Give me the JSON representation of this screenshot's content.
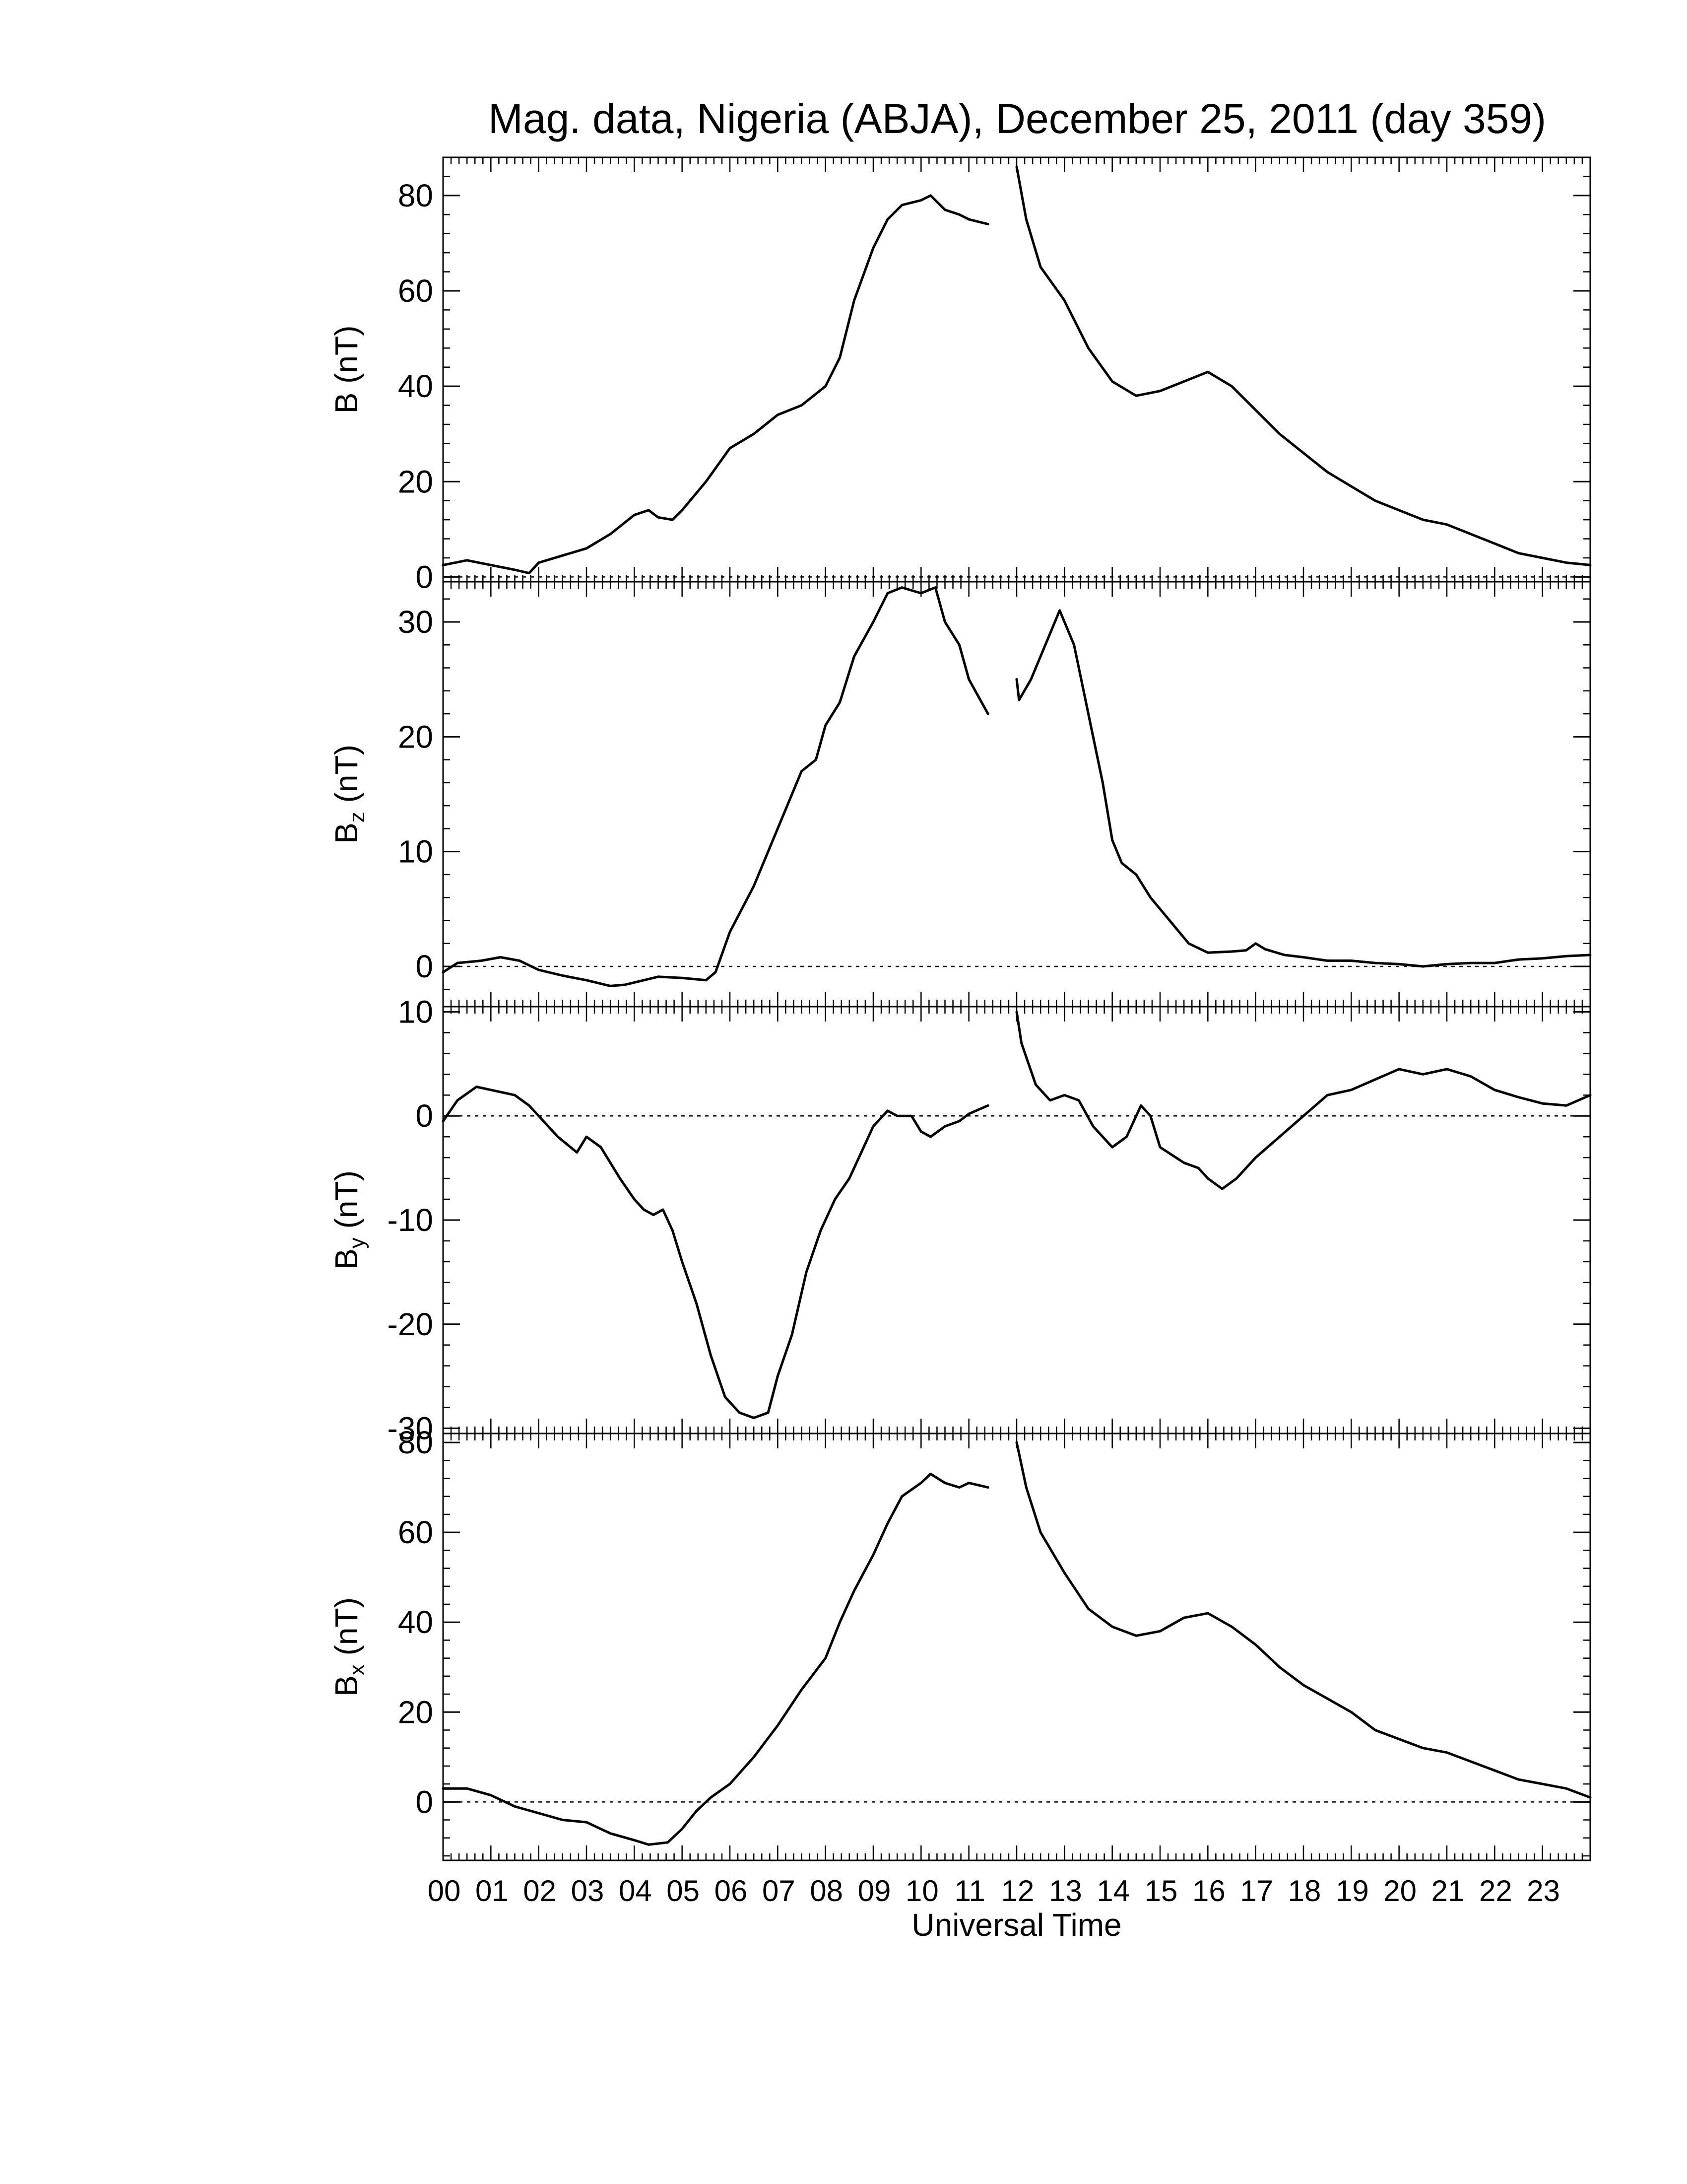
{
  "chart_data": {
    "type": "line",
    "title": "Mag. data, Nigeria (ABJA), December 25, 2011 (day 359)",
    "xlabel": "Universal Time",
    "x_ticks": [
      "00",
      "01",
      "02",
      "03",
      "04",
      "05",
      "06",
      "07",
      "08",
      "09",
      "10",
      "11",
      "12",
      "13",
      "14",
      "15",
      "16",
      "17",
      "18",
      "19",
      "20",
      "21",
      "22",
      "23"
    ],
    "x_range": [
      0,
      24
    ],
    "x_unit": "hours UT",
    "panels": [
      {
        "name": "B",
        "ylabel_main": "B",
        "ylabel_sub": "",
        "ylabel_unit": "(nT)",
        "ylim": [
          -1,
          88
        ],
        "yticks": [
          0,
          20,
          40,
          60,
          80
        ],
        "zero_line": true,
        "series": [
          [
            [
              0,
              2.5
            ],
            [
              0.5,
              3.5
            ],
            [
              1,
              2.5
            ],
            [
              1.5,
              1.5
            ],
            [
              1.8,
              0.8
            ],
            [
              2,
              3
            ],
            [
              2.5,
              4.5
            ],
            [
              3,
              6
            ],
            [
              3.5,
              9
            ],
            [
              4,
              13
            ],
            [
              4.3,
              14
            ],
            [
              4.5,
              12.5
            ],
            [
              4.8,
              12
            ],
            [
              5,
              14
            ],
            [
              5.5,
              20
            ],
            [
              6,
              27
            ],
            [
              6.5,
              30
            ],
            [
              7,
              34
            ],
            [
              7.5,
              36
            ],
            [
              8,
              40
            ],
            [
              8.3,
              46
            ],
            [
              8.6,
              58
            ],
            [
              9,
              69
            ],
            [
              9.3,
              75
            ],
            [
              9.6,
              78
            ],
            [
              10,
              79
            ],
            [
              10.2,
              80
            ],
            [
              10.5,
              77
            ],
            [
              10.8,
              76
            ],
            [
              11,
              75
            ],
            [
              11.4,
              74
            ]
          ],
          [
            [
              12,
              86
            ],
            [
              12.2,
              75
            ],
            [
              12.5,
              65
            ],
            [
              13,
              58
            ],
            [
              13.5,
              48
            ],
            [
              14,
              41
            ],
            [
              14.5,
              38
            ],
            [
              15,
              39
            ],
            [
              15.5,
              41
            ],
            [
              16,
              43
            ],
            [
              16.5,
              40
            ],
            [
              17,
              35
            ],
            [
              17.5,
              30
            ],
            [
              18,
              26
            ],
            [
              18.5,
              22
            ],
            [
              19,
              19
            ],
            [
              19.5,
              16
            ],
            [
              20,
              14
            ],
            [
              20.5,
              12
            ],
            [
              21,
              11
            ],
            [
              21.5,
              9
            ],
            [
              22,
              7
            ],
            [
              22.5,
              5
            ],
            [
              23,
              4
            ],
            [
              23.5,
              3
            ],
            [
              24,
              2.5
            ]
          ]
        ]
      },
      {
        "name": "Bz",
        "ylabel_main": "B",
        "ylabel_sub": "z",
        "ylabel_unit": "(nT)",
        "ylim": [
          -3.5,
          33.5
        ],
        "yticks": [
          0,
          10,
          20,
          30
        ],
        "zero_line": true,
        "series": [
          [
            [
              0,
              -0.5
            ],
            [
              0.3,
              0.3
            ],
            [
              0.8,
              0.5
            ],
            [
              1.2,
              0.8
            ],
            [
              1.6,
              0.5
            ],
            [
              2,
              -0.3
            ],
            [
              2.5,
              -0.8
            ],
            [
              3,
              -1.2
            ],
            [
              3.5,
              -1.7
            ],
            [
              3.8,
              -1.6
            ],
            [
              4,
              -1.4
            ],
            [
              4.5,
              -0.9
            ],
            [
              5,
              -1
            ],
            [
              5.5,
              -1.2
            ],
            [
              5.7,
              -0.5
            ],
            [
              6,
              3
            ],
            [
              6.5,
              7
            ],
            [
              7,
              12
            ],
            [
              7.3,
              15
            ],
            [
              7.5,
              17
            ],
            [
              7.8,
              18
            ],
            [
              8,
              21
            ],
            [
              8.3,
              23
            ],
            [
              8.6,
              27
            ],
            [
              9,
              30
            ],
            [
              9.3,
              32.5
            ],
            [
              9.6,
              33
            ],
            [
              10,
              32.5
            ],
            [
              10.3,
              33
            ],
            [
              10.5,
              30
            ],
            [
              10.8,
              28
            ],
            [
              11,
              25
            ],
            [
              11.4,
              22
            ]
          ],
          [
            [
              12,
              25
            ],
            [
              12.05,
              23.2
            ],
            [
              12.3,
              25
            ],
            [
              12.6,
              28
            ],
            [
              12.9,
              31
            ],
            [
              13.2,
              28
            ],
            [
              13.5,
              22
            ],
            [
              13.8,
              16
            ],
            [
              14,
              11
            ],
            [
              14.2,
              9
            ],
            [
              14.5,
              8
            ],
            [
              14.8,
              6
            ],
            [
              15.2,
              4
            ],
            [
              15.6,
              2
            ],
            [
              16,
              1.2
            ],
            [
              16.5,
              1.3
            ],
            [
              16.8,
              1.4
            ],
            [
              17,
              2
            ],
            [
              17.2,
              1.5
            ],
            [
              17.6,
              1
            ],
            [
              18,
              0.8
            ],
            [
              18.5,
              0.5
            ],
            [
              19,
              0.5
            ],
            [
              19.5,
              0.3
            ],
            [
              20,
              0.2
            ],
            [
              20.5,
              0
            ],
            [
              21,
              0.2
            ],
            [
              21.5,
              0.3
            ],
            [
              22,
              0.3
            ],
            [
              22.5,
              0.6
            ],
            [
              23,
              0.7
            ],
            [
              23.5,
              0.9
            ],
            [
              24,
              1
            ]
          ]
        ]
      },
      {
        "name": "By",
        "ylabel_main": "B",
        "ylabel_sub": "y",
        "ylabel_unit": "(nT)",
        "ylim": [
          -30.5,
          10.5
        ],
        "yticks": [
          -30,
          -20,
          -10,
          0,
          10
        ],
        "ytick_labels": [
          "-30",
          "-20",
          "-10",
          "0",
          "10"
        ],
        "zero_line": true,
        "series": [
          [
            [
              0,
              -0.5
            ],
            [
              0.3,
              1.5
            ],
            [
              0.7,
              2.8
            ],
            [
              1,
              2.5
            ],
            [
              1.5,
              2
            ],
            [
              1.8,
              1
            ],
            [
              2,
              0
            ],
            [
              2.4,
              -2
            ],
            [
              2.8,
              -3.5
            ],
            [
              3,
              -2
            ],
            [
              3.3,
              -3
            ],
            [
              3.7,
              -6
            ],
            [
              4,
              -8
            ],
            [
              4.2,
              -9
            ],
            [
              4.4,
              -9.5
            ],
            [
              4.6,
              -9
            ],
            [
              4.8,
              -11
            ],
            [
              5,
              -14
            ],
            [
              5.3,
              -18
            ],
            [
              5.6,
              -23
            ],
            [
              5.9,
              -27
            ],
            [
              6.2,
              -28.5
            ],
            [
              6.5,
              -29
            ],
            [
              6.8,
              -28.5
            ],
            [
              7,
              -25
            ],
            [
              7.3,
              -21
            ],
            [
              7.6,
              -15
            ],
            [
              7.9,
              -11
            ],
            [
              8.2,
              -8
            ],
            [
              8.5,
              -6
            ],
            [
              8.8,
              -3
            ],
            [
              9,
              -1
            ],
            [
              9.3,
              0.5
            ],
            [
              9.5,
              0
            ],
            [
              9.8,
              0
            ],
            [
              10,
              -1.5
            ],
            [
              10.2,
              -2
            ],
            [
              10.5,
              -1
            ],
            [
              10.8,
              -0.5
            ],
            [
              11,
              0.2
            ],
            [
              11.4,
              1
            ]
          ],
          [
            [
              12,
              10
            ],
            [
              12.1,
              7
            ],
            [
              12.4,
              3
            ],
            [
              12.7,
              1.5
            ],
            [
              13,
              2
            ],
            [
              13.3,
              1.5
            ],
            [
              13.6,
              -1
            ],
            [
              14,
              -3
            ],
            [
              14.3,
              -2
            ],
            [
              14.6,
              1
            ],
            [
              14.8,
              0
            ],
            [
              15,
              -3
            ],
            [
              15.5,
              -4.5
            ],
            [
              15.8,
              -5
            ],
            [
              16,
              -6
            ],
            [
              16.3,
              -7
            ],
            [
              16.6,
              -6
            ],
            [
              17,
              -4
            ],
            [
              17.5,
              -2
            ],
            [
              18,
              0
            ],
            [
              18.5,
              2
            ],
            [
              19,
              2.5
            ],
            [
              19.5,
              3.5
            ],
            [
              20,
              4.5
            ],
            [
              20.5,
              4
            ],
            [
              21,
              4.5
            ],
            [
              21.5,
              3.8
            ],
            [
              22,
              2.5
            ],
            [
              22.5,
              1.8
            ],
            [
              23,
              1.2
            ],
            [
              23.5,
              1
            ],
            [
              24,
              2
            ]
          ]
        ]
      },
      {
        "name": "Bx",
        "ylabel_main": "B",
        "ylabel_sub": "x",
        "ylabel_unit": "(nT)",
        "ylim": [
          -13,
          82
        ],
        "yticks": [
          0,
          20,
          40,
          60,
          80
        ],
        "zero_line": true,
        "series": [
          [
            [
              0,
              3
            ],
            [
              0.5,
              3
            ],
            [
              1,
              1.5
            ],
            [
              1.5,
              -1
            ],
            [
              2,
              -2.5
            ],
            [
              2.5,
              -4
            ],
            [
              3,
              -4.5
            ],
            [
              3.5,
              -7
            ],
            [
              4,
              -8.5
            ],
            [
              4.3,
              -9.5
            ],
            [
              4.7,
              -9
            ],
            [
              5,
              -6
            ],
            [
              5.3,
              -2
            ],
            [
              5.6,
              1
            ],
            [
              6,
              4
            ],
            [
              6.5,
              10
            ],
            [
              7,
              17
            ],
            [
              7.5,
              25
            ],
            [
              8,
              32
            ],
            [
              8.3,
              40
            ],
            [
              8.6,
              47
            ],
            [
              9,
              55
            ],
            [
              9.3,
              62
            ],
            [
              9.6,
              68
            ],
            [
              10,
              71
            ],
            [
              10.2,
              73
            ],
            [
              10.5,
              71
            ],
            [
              10.8,
              70
            ],
            [
              11,
              71
            ],
            [
              11.4,
              70
            ]
          ],
          [
            [
              12,
              80
            ],
            [
              12.2,
              70
            ],
            [
              12.5,
              60
            ],
            [
              13,
              51
            ],
            [
              13.5,
              43
            ],
            [
              14,
              39
            ],
            [
              14.5,
              37
            ],
            [
              15,
              38
            ],
            [
              15.5,
              41
            ],
            [
              16,
              42
            ],
            [
              16.5,
              39
            ],
            [
              17,
              35
            ],
            [
              17.5,
              30
            ],
            [
              18,
              26
            ],
            [
              18.5,
              23
            ],
            [
              19,
              20
            ],
            [
              19.5,
              16
            ],
            [
              20,
              14
            ],
            [
              20.5,
              12
            ],
            [
              21,
              11
            ],
            [
              21.5,
              9
            ],
            [
              22,
              7
            ],
            [
              22.5,
              5
            ],
            [
              23,
              4
            ],
            [
              23.5,
              3
            ],
            [
              24,
              1
            ]
          ]
        ]
      }
    ]
  }
}
